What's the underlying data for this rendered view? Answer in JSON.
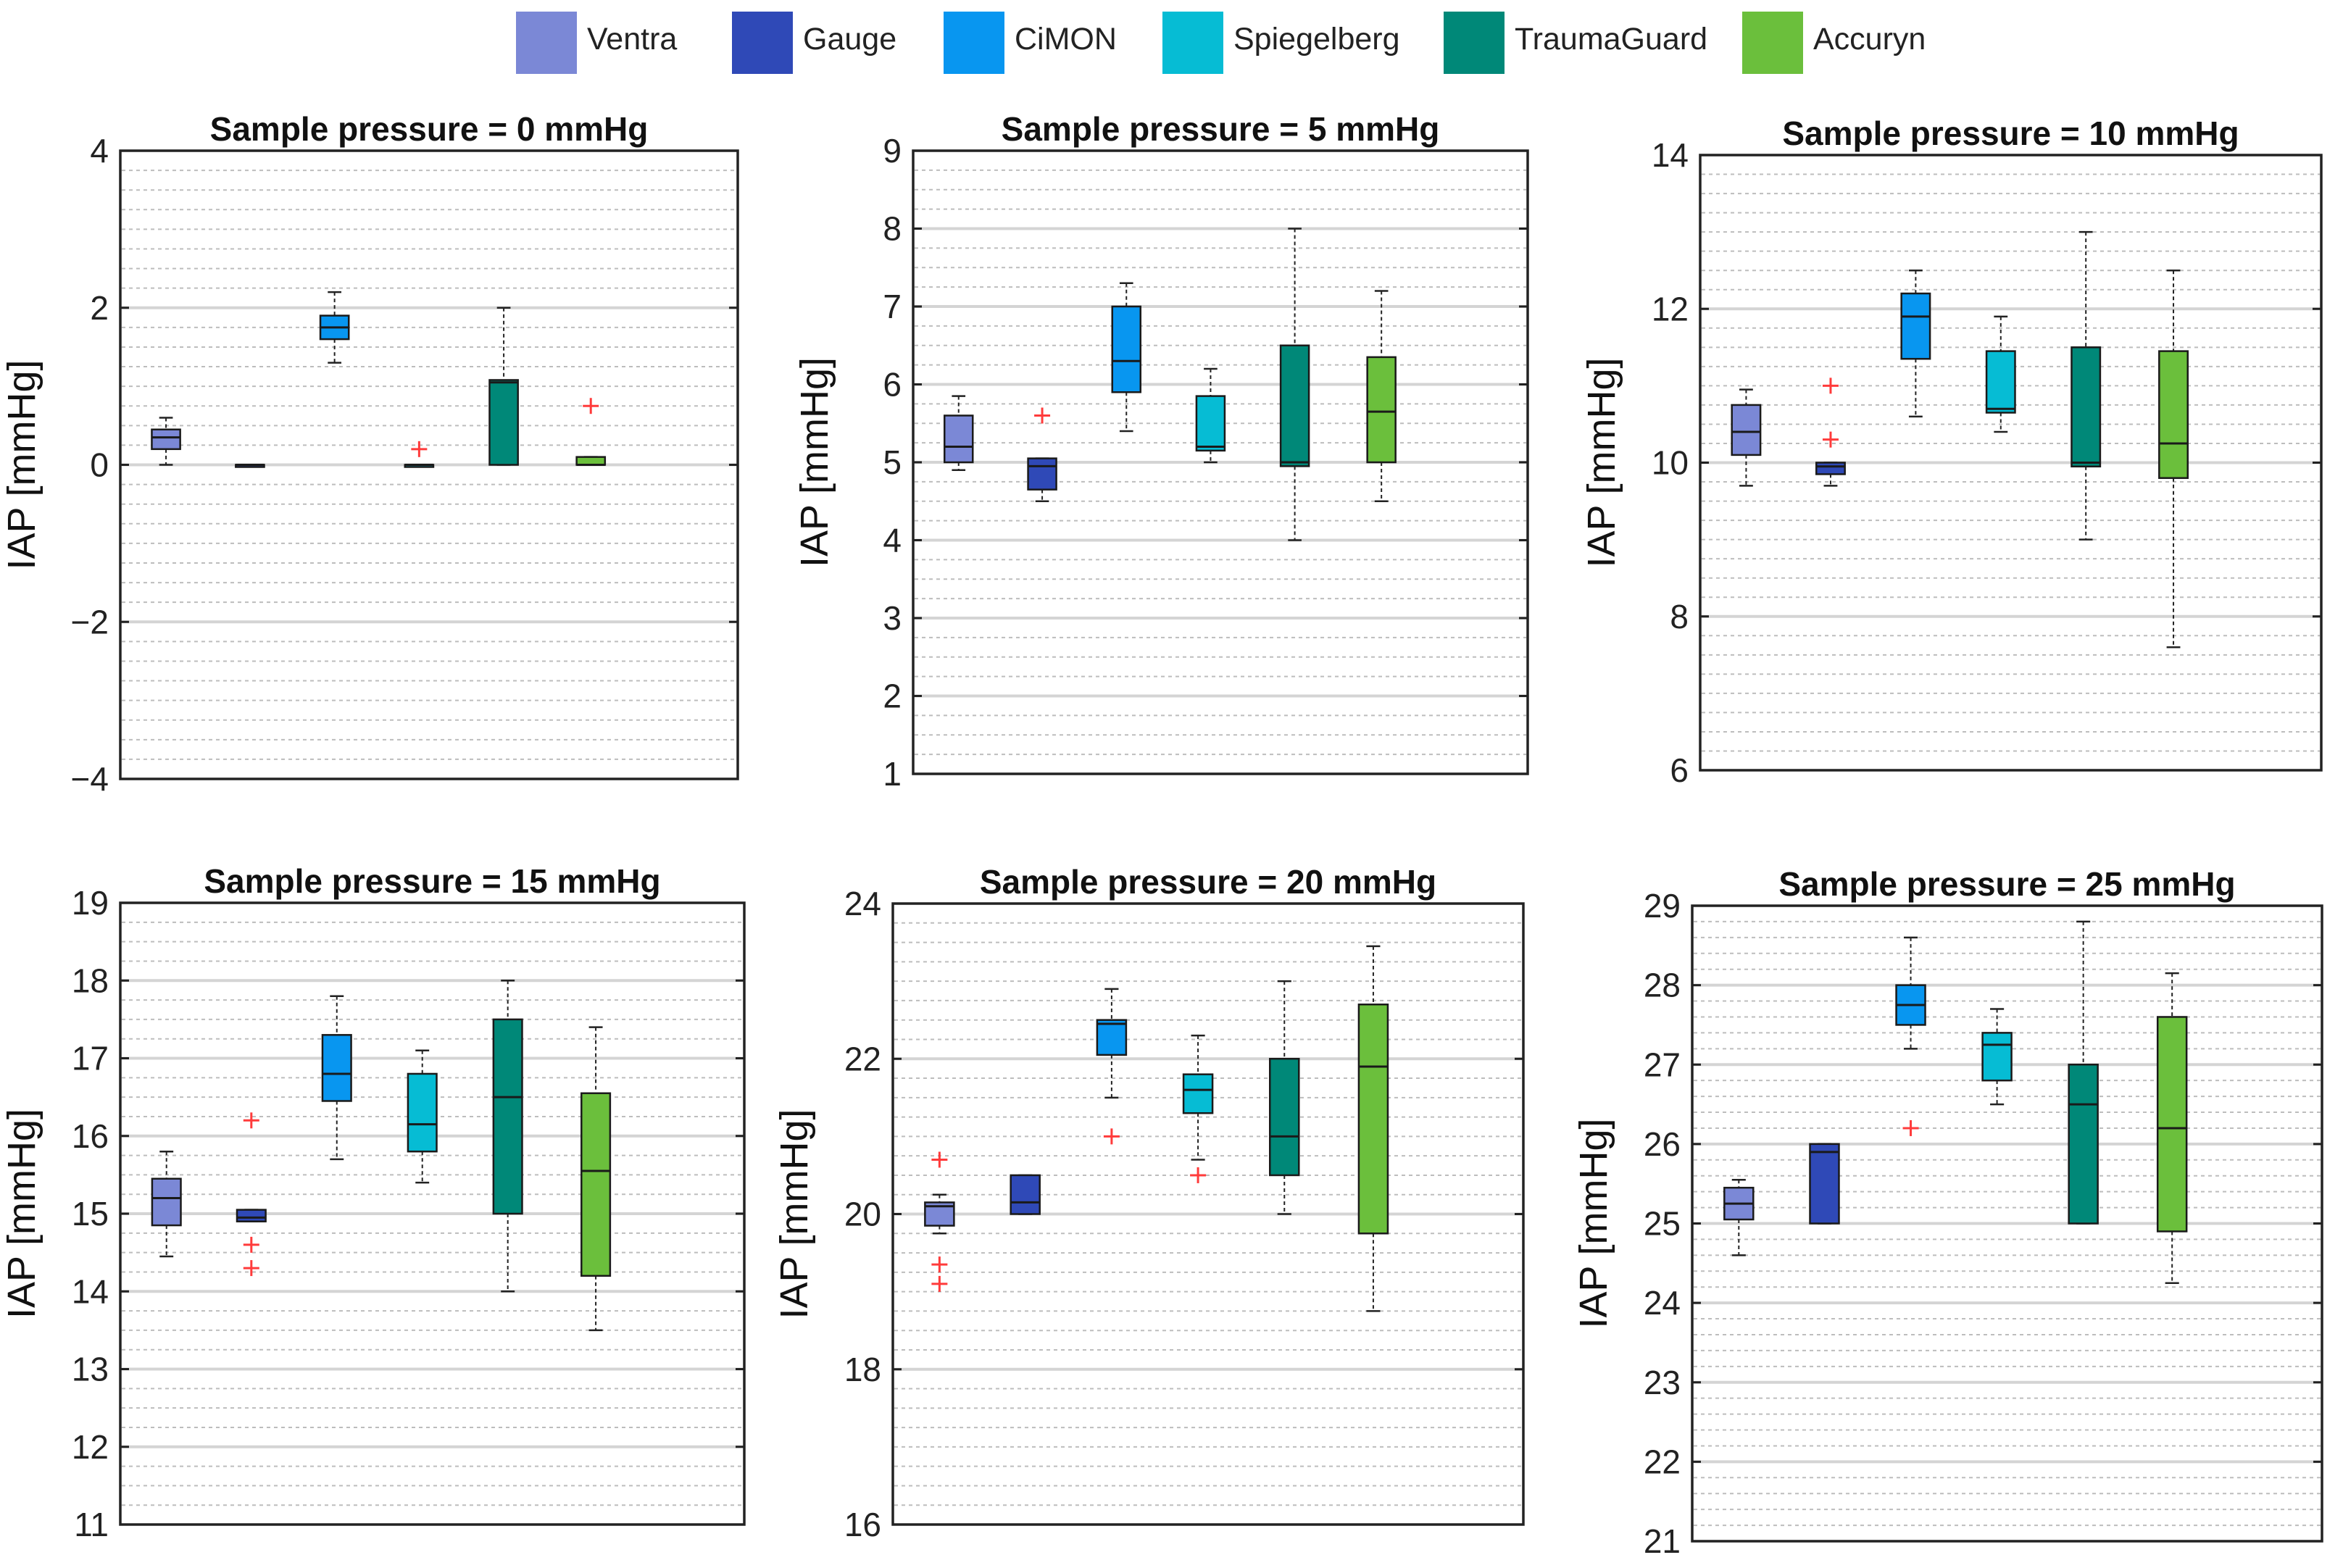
{
  "legend": [
    {
      "label": "Ventra",
      "color": "#7b88d6"
    },
    {
      "label": "Gauge",
      "color": "#2f49b7"
    },
    {
      "label": "CiMON",
      "color": "#0896f0"
    },
    {
      "label": "Spiegelberg",
      "color": "#06bcd4"
    },
    {
      "label": "TraumaGuard",
      "color": "#008878"
    },
    {
      "label": "Accuryn",
      "color": "#6bbf3c"
    }
  ],
  "chart_data": [
    {
      "type": "boxplot",
      "title": "Sample pressure = 0 mmHg",
      "ylabel": "IAP [mmHg]",
      "ylim": [
        -4,
        4
      ],
      "ticks": [
        "-4",
        "-2",
        "0",
        "2",
        "4"
      ],
      "grid_step": 0.25,
      "series": [
        {
          "name": "Ventra",
          "min": 0,
          "q1": 0.2,
          "median": 0.35,
          "q3": 0.45,
          "max": 0.6,
          "outliers": []
        },
        {
          "name": "Gauge",
          "min": 0,
          "q1": 0,
          "median": 0,
          "q3": 0,
          "max": 0,
          "outliers": []
        },
        {
          "name": "CiMON",
          "min": 1.3,
          "q1": 1.6,
          "median": 1.75,
          "q3": 1.9,
          "max": 2.2,
          "outliers": []
        },
        {
          "name": "Spiegelberg",
          "min": 0,
          "q1": 0,
          "median": 0,
          "q3": 0,
          "max": 0,
          "outliers": [
            0.2
          ]
        },
        {
          "name": "TraumaGuard",
          "min": 0,
          "q1": 0,
          "median": 1.05,
          "q3": 1.08,
          "max": 2.0,
          "outliers": []
        },
        {
          "name": "Accuryn",
          "min": 0,
          "q1": 0,
          "median": 0,
          "q3": 0.1,
          "max": 0.1,
          "outliers": [
            0.75
          ]
        }
      ]
    },
    {
      "type": "boxplot",
      "title": "Sample pressure = 5 mmHg",
      "ylabel": "IAP [mmHg]",
      "ylim": [
        1,
        9
      ],
      "ticks": [
        "1",
        "2",
        "3",
        "4",
        "5",
        "6",
        "7",
        "8",
        "9"
      ],
      "grid_step": 0.25,
      "series": [
        {
          "name": "Ventra",
          "min": 4.9,
          "q1": 5.0,
          "median": 5.2,
          "q3": 5.6,
          "max": 5.85,
          "outliers": []
        },
        {
          "name": "Gauge",
          "min": 4.5,
          "q1": 4.65,
          "median": 4.95,
          "q3": 5.05,
          "max": 5.05,
          "outliers": [
            5.6
          ]
        },
        {
          "name": "CiMON",
          "min": 5.4,
          "q1": 5.9,
          "median": 6.3,
          "q3": 7.0,
          "max": 7.3,
          "outliers": []
        },
        {
          "name": "Spiegelberg",
          "min": 5.0,
          "q1": 5.15,
          "median": 5.2,
          "q3": 5.85,
          "max": 6.2,
          "outliers": []
        },
        {
          "name": "TraumaGuard",
          "min": 4.0,
          "q1": 4.95,
          "median": 5.0,
          "q3": 6.5,
          "max": 8.0,
          "outliers": []
        },
        {
          "name": "Accuryn",
          "min": 4.5,
          "q1": 5.0,
          "median": 5.65,
          "q3": 6.35,
          "max": 7.2,
          "outliers": []
        }
      ]
    },
    {
      "type": "boxplot",
      "title": "Sample pressure = 10 mmHg",
      "ylabel": "IAP [mmHg]",
      "ylim": [
        6,
        14
      ],
      "ticks": [
        "6",
        "8",
        "10",
        "12",
        "14"
      ],
      "grid_step": 0.25,
      "series": [
        {
          "name": "Ventra",
          "min": 9.7,
          "q1": 10.1,
          "median": 10.4,
          "q3": 10.75,
          "max": 10.95,
          "outliers": []
        },
        {
          "name": "Gauge",
          "min": 9.7,
          "q1": 9.85,
          "median": 9.95,
          "q3": 10.0,
          "max": 10.0,
          "outliers": [
            11.0,
            10.3
          ]
        },
        {
          "name": "CiMON",
          "min": 10.6,
          "q1": 11.35,
          "median": 11.9,
          "q3": 12.2,
          "max": 12.5,
          "outliers": []
        },
        {
          "name": "Spiegelberg",
          "min": 10.4,
          "q1": 10.65,
          "median": 10.7,
          "q3": 11.45,
          "max": 11.9,
          "outliers": []
        },
        {
          "name": "TraumaGuard",
          "min": 9.0,
          "q1": 9.95,
          "median": 10.0,
          "q3": 11.5,
          "max": 13.0,
          "outliers": []
        },
        {
          "name": "Accuryn",
          "min": 7.6,
          "q1": 9.8,
          "median": 10.25,
          "q3": 11.45,
          "max": 12.5,
          "outliers": []
        }
      ]
    },
    {
      "type": "boxplot",
      "title": "Sample pressure = 15 mmHg",
      "ylabel": "IAP [mmHg]",
      "ylim": [
        11,
        19
      ],
      "ticks": [
        "11",
        "12",
        "13",
        "14",
        "15",
        "16",
        "17",
        "18",
        "19"
      ],
      "grid_step": 0.25,
      "series": [
        {
          "name": "Ventra",
          "min": 14.45,
          "q1": 14.85,
          "median": 15.2,
          "q3": 15.45,
          "max": 15.8,
          "outliers": []
        },
        {
          "name": "Gauge",
          "min": 14.9,
          "q1": 14.9,
          "median": 14.95,
          "q3": 15.05,
          "max": 15.05,
          "outliers": [
            16.2,
            14.6,
            14.3
          ]
        },
        {
          "name": "CiMON",
          "min": 15.7,
          "q1": 16.45,
          "median": 16.8,
          "q3": 17.3,
          "max": 17.8,
          "outliers": []
        },
        {
          "name": "Spiegelberg",
          "min": 15.4,
          "q1": 15.8,
          "median": 16.15,
          "q3": 16.8,
          "max": 17.1,
          "outliers": []
        },
        {
          "name": "TraumaGuard",
          "min": 14.0,
          "q1": 15.0,
          "median": 16.5,
          "q3": 17.5,
          "max": 18.0,
          "outliers": []
        },
        {
          "name": "Accuryn",
          "min": 13.5,
          "q1": 14.2,
          "median": 15.55,
          "q3": 16.55,
          "max": 17.4,
          "outliers": []
        }
      ]
    },
    {
      "type": "boxplot",
      "title": "Sample pressure = 20 mmHg",
      "ylabel": "IAP [mmHg]",
      "ylim": [
        16,
        24
      ],
      "ticks": [
        "16",
        "18",
        "20",
        "22",
        "24"
      ],
      "grid_step": 0.25,
      "series": [
        {
          "name": "Ventra",
          "min": 19.75,
          "q1": 19.85,
          "median": 20.1,
          "q3": 20.15,
          "max": 20.25,
          "outliers": [
            20.7,
            19.35,
            19.1
          ]
        },
        {
          "name": "Gauge",
          "min": 20.0,
          "q1": 20.0,
          "median": 20.15,
          "q3": 20.5,
          "max": 20.5,
          "outliers": []
        },
        {
          "name": "CiMON",
          "min": 21.5,
          "q1": 22.05,
          "median": 22.45,
          "q3": 22.5,
          "max": 22.9,
          "outliers": [
            21.0
          ]
        },
        {
          "name": "Spiegelberg",
          "min": 20.7,
          "q1": 21.3,
          "median": 21.6,
          "q3": 21.8,
          "max": 22.3,
          "outliers": [
            20.5
          ]
        },
        {
          "name": "TraumaGuard",
          "min": 20.0,
          "q1": 20.5,
          "median": 21.0,
          "q3": 22.0,
          "max": 23.0,
          "outliers": []
        },
        {
          "name": "Accuryn",
          "min": 18.75,
          "q1": 19.75,
          "median": 21.9,
          "q3": 22.7,
          "max": 23.45,
          "outliers": []
        }
      ]
    },
    {
      "type": "boxplot",
      "title": "Sample pressure = 25 mmHg",
      "ylabel": "IAP [mmHg]",
      "ylim": [
        21,
        29
      ],
      "ticks": [
        "21",
        "22",
        "23",
        "24",
        "25",
        "26",
        "27",
        "28",
        "29"
      ],
      "grid_step": 0.2,
      "series": [
        {
          "name": "Ventra",
          "min": 24.6,
          "q1": 25.05,
          "median": 25.25,
          "q3": 25.45,
          "max": 25.55,
          "outliers": []
        },
        {
          "name": "Gauge",
          "min": 25.0,
          "q1": 25.0,
          "median": 25.9,
          "q3": 26.0,
          "max": 26.0,
          "outliers": []
        },
        {
          "name": "CiMON",
          "min": 27.2,
          "q1": 27.5,
          "median": 27.75,
          "q3": 28.0,
          "max": 28.6,
          "outliers": [
            26.2
          ]
        },
        {
          "name": "Spiegelberg",
          "min": 26.5,
          "q1": 26.8,
          "median": 27.25,
          "q3": 27.4,
          "max": 27.7,
          "outliers": []
        },
        {
          "name": "TraumaGuard",
          "min": 25.0,
          "q1": 25.0,
          "median": 26.5,
          "q3": 27.0,
          "max": 28.8,
          "outliers": []
        },
        {
          "name": "Accuryn",
          "min": 24.25,
          "q1": 24.9,
          "median": 26.2,
          "q3": 27.6,
          "max": 28.15,
          "outliers": []
        }
      ]
    }
  ]
}
